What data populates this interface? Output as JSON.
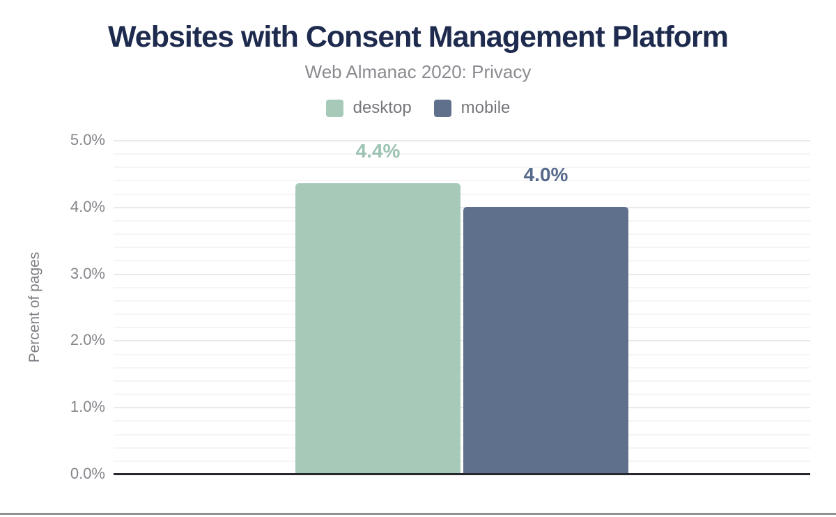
{
  "chart_data": {
    "type": "bar",
    "title": "Websites with Consent Management Platform",
    "subtitle": "Web Almanac 2020: Privacy",
    "ylabel": "Percent of pages",
    "xlabel": "",
    "ylim": [
      0,
      5
    ],
    "y_major_step": 1,
    "y_minor_step": 0.2,
    "grid": true,
    "legend_position": "top-center",
    "categories": [
      "desktop",
      "mobile"
    ],
    "series": [
      {
        "name": "desktop",
        "value": 4.4,
        "plotted_value": 4.35,
        "label": "4.4%",
        "color": "#a6c9b8",
        "label_color": "#9cc2b1"
      },
      {
        "name": "mobile",
        "value": 4.0,
        "plotted_value": 4.0,
        "label": "4.0%",
        "color": "#5f708d",
        "label_color": "#57698b"
      }
    ],
    "y_ticks": [
      {
        "value": 0,
        "label": "0.0%"
      },
      {
        "value": 1,
        "label": "1.0%"
      },
      {
        "value": 2,
        "label": "2.0%"
      },
      {
        "value": 3,
        "label": "3.0%"
      },
      {
        "value": 4,
        "label": "4.0%"
      },
      {
        "value": 5,
        "label": "5.0%"
      }
    ]
  },
  "colors": {
    "title": "#1e2b4e",
    "subtitle": "#8a8b90",
    "legend_text": "#76777b",
    "tick_text": "#85868b",
    "axis_line": "#27272e",
    "gridline_major": "#e9e9e9",
    "gridline_minor": "#f5f5f5",
    "bottom_rule": "#909296",
    "background": "#ffffff"
  }
}
